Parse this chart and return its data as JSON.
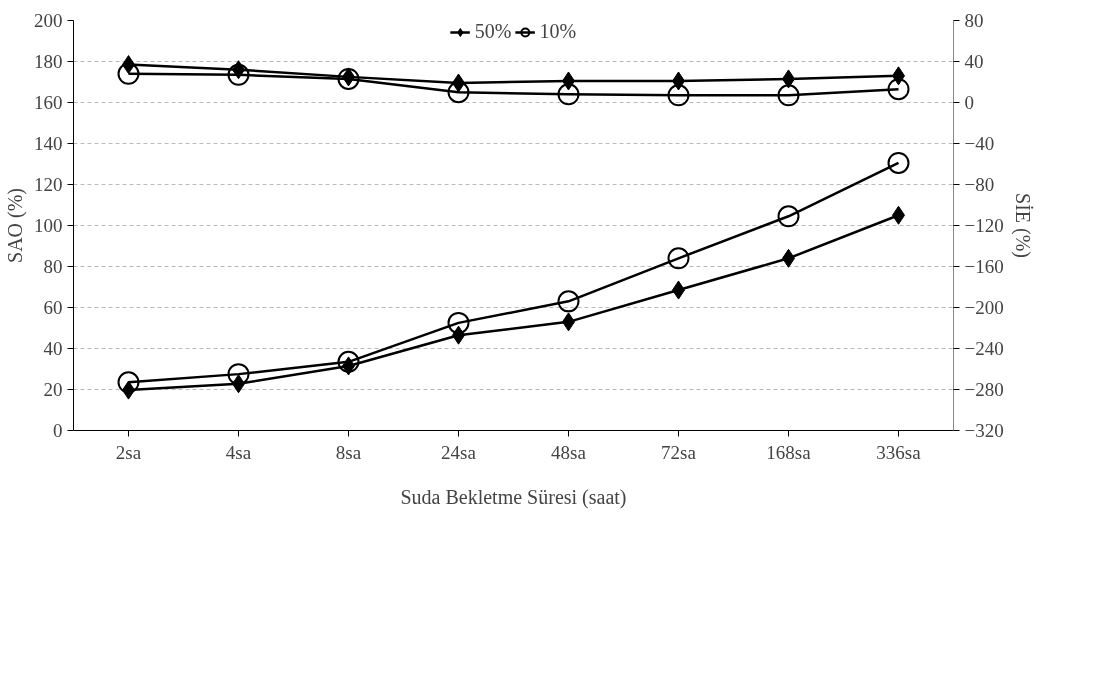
{
  "chart_data": {
    "type": "line",
    "xlabel": "Suda Bekletme Süresi (saat)",
    "ylabel": "SAO (%)",
    "y2label": "SİE (%)",
    "categories": [
      "2sa",
      "4sa",
      "8sa",
      "24sa",
      "48sa",
      "72sa",
      "168sa",
      "336sa"
    ],
    "series": [
      {
        "name": "50%",
        "color": "#000000",
        "marker": "diamond",
        "values": [
          19.7,
          22.8,
          31.5,
          46.5,
          53,
          68.5,
          84,
          105
        ]
      },
      {
        "name": "10%",
        "color": "#000000",
        "marker": "circle",
        "values": [
          23.5,
          27.5,
          33.5,
          52.5,
          63,
          84,
          104.5,
          130.5
        ]
      },
      {
        "color": "#000000",
        "marker": "diamond",
        "axis": "y2",
        "values": [
          37,
          32,
          25,
          19,
          21,
          21,
          23,
          26
        ]
      },
      {
        "color": "#000000",
        "marker": "circle",
        "axis": "y2",
        "values": [
          28,
          27,
          23,
          10,
          8,
          7,
          7,
          13
        ]
      }
    ],
    "ylim": [
      0,
      200
    ],
    "yticks": [
      0,
      20,
      40,
      60,
      80,
      100,
      120,
      140,
      160,
      180,
      200
    ],
    "y2lim": [
      -320,
      80
    ],
    "y2ticks": [
      -320,
      -280,
      -240,
      -200,
      -160,
      -120,
      -80,
      -40,
      0,
      40,
      80
    ],
    "grid": "y",
    "legend": "top",
    "line_style": "solid"
  }
}
